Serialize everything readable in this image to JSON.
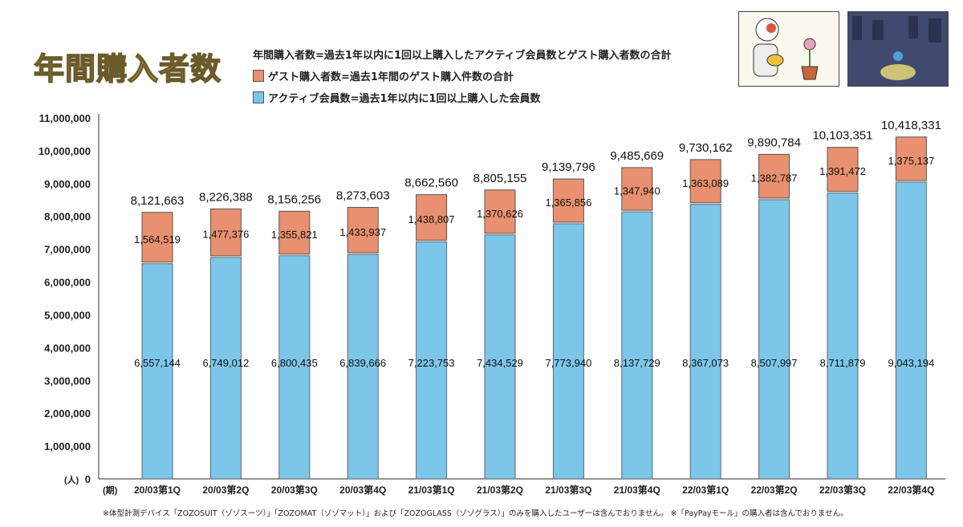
{
  "title": "年間購入者数",
  "legend": {
    "definition": "年間購入者数=過去1年以内に1回以上購入したアクティブ会員数とゲスト購入者数の合計",
    "guest": "ゲスト購入者数=過去1年間のゲスト購入件数の合計",
    "active": "アクティブ会員数=過去1年以内に1回以上購入した会員数"
  },
  "colors": {
    "guest": "#e8906f",
    "active": "#7cc6ea",
    "title": "#f6d64a"
  },
  "footnote": "※体型計測デバイス「ZOZOSUIT（ゾゾスーツ）」「ZOZOMAT（ゾゾマット）」および「ZOZOGLASS（ゾゾグラス）」のみを購入したユーザーは含んでおりません。 ※「PayPayモール」の購入者は含んでおりません。",
  "chart_data": {
    "type": "bar",
    "stacked": true,
    "xlabel": "(期)",
    "ylabel": "(人)",
    "ylim": [
      0,
      11000000
    ],
    "yticks": [
      "0",
      "1,000,000",
      "2,000,000",
      "3,000,000",
      "4,000,000",
      "5,000,000",
      "6,000,000",
      "7,000,000",
      "8,000,000",
      "9,000,000",
      "10,000,000",
      "11,000,000"
    ],
    "categories": [
      "20/03第1Q",
      "20/03第2Q",
      "20/03第3Q",
      "20/03第4Q",
      "21/03第1Q",
      "21/03第2Q",
      "21/03第3Q",
      "21/03第4Q",
      "22/03第1Q",
      "22/03第2Q",
      "22/03第3Q",
      "22/03第4Q"
    ],
    "series": [
      {
        "key": "active",
        "values": [
          6557144,
          6749012,
          6800435,
          6839666,
          7223753,
          7434529,
          7773940,
          8137729,
          8367073,
          8507997,
          8711879,
          9043194
        ]
      },
      {
        "key": "guest",
        "values": [
          1564519,
          1477376,
          1355821,
          1433937,
          1438807,
          1370626,
          1365856,
          1347940,
          1363089,
          1382787,
          1391472,
          1375137
        ]
      }
    ],
    "totals": [
      8121663,
      8226388,
      8156256,
      8273603,
      8662560,
      8805155,
      9139796,
      9485669,
      9730162,
      9890784,
      10103351,
      10418331
    ]
  }
}
